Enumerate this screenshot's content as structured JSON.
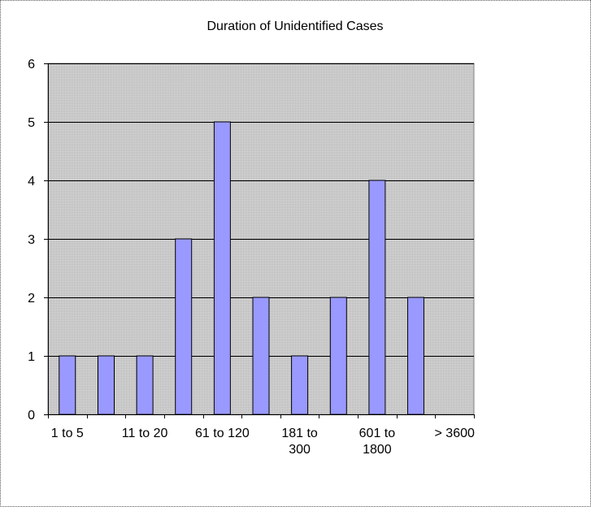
{
  "chart_data": {
    "type": "bar",
    "title": "Duration of Unidentified Cases",
    "xlabel": "",
    "ylabel": "",
    "ylim": [
      0,
      6
    ],
    "yticks": [
      0,
      1,
      2,
      3,
      4,
      5,
      6
    ],
    "grid": true,
    "legend": "none",
    "categories": [
      "1 to 5",
      "",
      "11 to 20",
      "",
      "61 to 120",
      "",
      "181 to 300",
      "",
      "601 to 1800",
      "",
      "> 3600"
    ],
    "values": [
      1,
      1,
      1,
      3,
      5,
      2,
      1,
      2,
      4,
      2,
      0
    ],
    "colors": {
      "bar": "#9999ff",
      "bar_edge": "#000000",
      "plot_bg": "#c0c0c0",
      "grid": "#000000"
    }
  }
}
